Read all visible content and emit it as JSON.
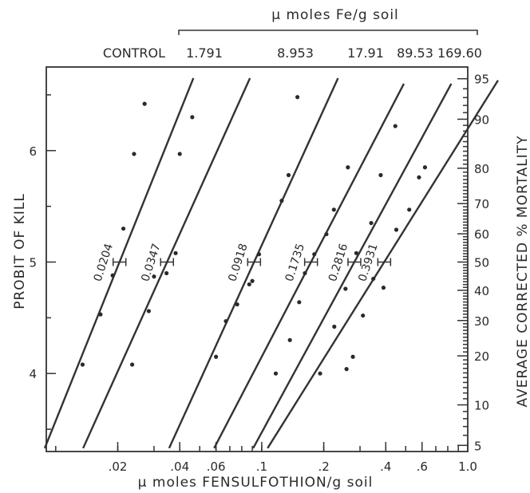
{
  "chart_data": {
    "type": "line",
    "title": "μ moles Fe/g soil",
    "xlabel": "μ moles FENSULFOTHION/g soil",
    "ylabel_left": "PROBIT OF KILL",
    "ylabel_right": "AVERAGE CORRECTED % MORTALITY",
    "x_scale": "log",
    "xlim": [
      0.009,
      1.0
    ],
    "ylim": [
      3.3,
      6.75
    ],
    "x_ticks": [
      {
        "value": 0.02,
        "label": ".02"
      },
      {
        "value": 0.04,
        "label": ".04"
      },
      {
        "value": 0.06,
        "label": ".06"
      },
      {
        "value": 0.1,
        "label": ".1"
      },
      {
        "value": 0.2,
        "label": ".2"
      },
      {
        "value": 0.4,
        "label": ".4"
      },
      {
        "value": 0.6,
        "label": ".6"
      },
      {
        "value": 1.0,
        "label": "1.0"
      }
    ],
    "y_ticks_left": [
      {
        "value": 4,
        "label": "4"
      },
      {
        "value": 5,
        "label": "5"
      },
      {
        "value": 6,
        "label": "6"
      }
    ],
    "y_ticks_right": [
      {
        "value": 5,
        "label": "5"
      },
      {
        "value": 10,
        "label": "10"
      },
      {
        "value": 20,
        "label": "20"
      },
      {
        "value": 30,
        "label": "30"
      },
      {
        "value": 40,
        "label": "40"
      },
      {
        "value": 50,
        "label": "50"
      },
      {
        "value": 60,
        "label": "60"
      },
      {
        "value": 70,
        "label": "70"
      },
      {
        "value": 80,
        "label": "80"
      },
      {
        "value": 90,
        "label": "90"
      },
      {
        "value": 95,
        "label": "95"
      }
    ],
    "series": [
      {
        "name": "CONTROL",
        "ld50": 0.0204,
        "ld50_label": "0.0204",
        "slope": 4.6,
        "line_y": [
          3.33,
          6.65
        ],
        "points": [
          [
            0.0135,
            4.08
          ],
          [
            0.0165,
            4.53
          ],
          [
            0.0189,
            4.88
          ],
          [
            0.0213,
            5.3
          ],
          [
            0.024,
            5.97
          ],
          [
            0.027,
            6.42
          ]
        ]
      },
      {
        "name": "1.791",
        "ld50": 0.0347,
        "ld50_label": "0.0347",
        "slope": 4.1,
        "line_y": [
          3.33,
          6.65
        ],
        "points": [
          [
            0.0235,
            4.08
          ],
          [
            0.0283,
            4.56
          ],
          [
            0.03,
            4.87
          ],
          [
            0.0345,
            4.9
          ],
          [
            0.0382,
            5.08
          ],
          [
            0.04,
            5.97
          ],
          [
            0.046,
            6.3
          ]
        ]
      },
      {
        "name": "8.953",
        "ld50": 0.0918,
        "ld50_label": "0.0918",
        "slope": 4.05,
        "line_y": [
          3.33,
          6.65
        ],
        "points": [
          [
            0.06,
            4.15
          ],
          [
            0.067,
            4.47
          ],
          [
            0.076,
            4.62
          ],
          [
            0.087,
            4.8
          ],
          [
            0.09,
            4.83
          ],
          [
            0.097,
            5.07
          ],
          [
            0.125,
            5.55
          ],
          [
            0.135,
            5.78
          ],
          [
            0.149,
            6.48
          ]
        ]
      },
      {
        "name": "17.91",
        "ld50": 0.1735,
        "ld50_label": "0.1735",
        "slope": 3.55,
        "line_y": [
          3.33,
          6.6
        ],
        "points": [
          [
            0.117,
            4.0
          ],
          [
            0.137,
            4.3
          ],
          [
            0.152,
            4.64
          ],
          [
            0.162,
            4.9
          ],
          [
            0.18,
            5.07
          ],
          [
            0.206,
            5.25
          ],
          [
            0.224,
            5.47
          ],
          [
            0.262,
            5.85
          ]
        ]
      },
      {
        "name": "89.53",
        "ld50": 0.2816,
        "ld50_label": "0.2816",
        "slope": 3.4,
        "line_y": [
          3.33,
          6.6
        ],
        "points": [
          [
            0.192,
            4.0
          ],
          [
            0.225,
            4.42
          ],
          [
            0.255,
            4.76
          ],
          [
            0.288,
            5.08
          ],
          [
            0.34,
            5.35
          ],
          [
            0.378,
            5.78
          ],
          [
            0.445,
            6.22
          ]
        ]
      },
      {
        "name": "169.60",
        "ld50": 0.3931,
        "ld50_label": "0.3931",
        "slope": 2.95,
        "line_y": [
          3.33,
          6.63
        ],
        "points": [
          [
            0.258,
            4.04
          ],
          [
            0.277,
            4.15
          ],
          [
            0.31,
            4.52
          ],
          [
            0.348,
            4.85
          ],
          [
            0.39,
            4.77
          ],
          [
            0.45,
            5.29
          ],
          [
            0.52,
            5.47
          ],
          [
            0.58,
            5.76
          ],
          [
            0.62,
            5.85
          ]
        ]
      }
    ]
  }
}
